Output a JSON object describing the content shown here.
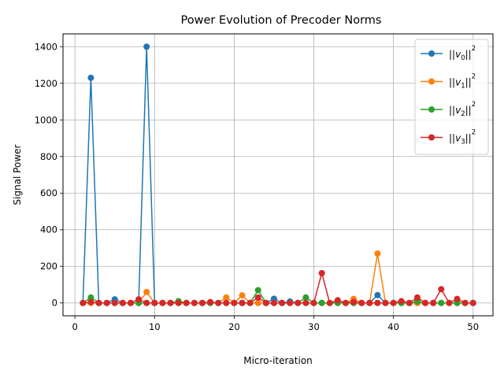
{
  "chart_data": {
    "type": "line",
    "title": "Power Evolution of Precoder Norms",
    "xlabel": "Micro-iteration",
    "ylabel": "Signal Power",
    "xlim": [
      -1.5,
      52.5
    ],
    "ylim": [
      -70,
      1470
    ],
    "xticks": [
      0,
      10,
      20,
      30,
      40,
      50
    ],
    "yticks": [
      0,
      200,
      400,
      600,
      800,
      1000,
      1200,
      1400
    ],
    "grid": true,
    "legend_position": "top-right",
    "x": [
      1,
      2,
      3,
      4,
      5,
      6,
      7,
      8,
      9,
      10,
      11,
      12,
      13,
      14,
      15,
      16,
      17,
      18,
      19,
      20,
      21,
      22,
      23,
      24,
      25,
      26,
      27,
      28,
      29,
      30,
      31,
      32,
      33,
      34,
      35,
      36,
      37,
      38,
      39,
      40,
      41,
      42,
      43,
      44,
      45,
      46,
      47,
      48,
      49,
      50
    ],
    "series": [
      {
        "name": "||v0||^2",
        "base": "v",
        "sub": "0",
        "sup": "2",
        "color": "#1f77b4",
        "values": [
          0,
          1230,
          0,
          0,
          20,
          0,
          0,
          0,
          1400,
          0,
          0,
          0,
          0,
          0,
          0,
          0,
          0,
          0,
          0,
          0,
          0,
          0,
          0,
          0,
          23,
          0,
          8,
          0,
          0,
          0,
          0,
          0,
          0,
          0,
          0,
          0,
          0,
          43,
          0,
          0,
          0,
          0,
          0,
          0,
          0,
          0,
          0,
          0,
          0,
          0
        ]
      },
      {
        "name": "||v1||^2",
        "base": "v",
        "sub": "1",
        "sup": "2",
        "color": "#ff7f0e",
        "values": [
          0,
          0,
          0,
          0,
          0,
          0,
          0,
          0,
          60,
          0,
          0,
          0,
          0,
          0,
          0,
          0,
          0,
          0,
          30,
          0,
          42,
          0,
          0,
          0,
          0,
          0,
          0,
          0,
          0,
          0,
          0,
          0,
          0,
          0,
          22,
          0,
          0,
          270,
          0,
          0,
          0,
          0,
          0,
          0,
          0,
          0,
          0,
          0,
          0,
          0
        ]
      },
      {
        "name": "||v2||^2",
        "base": "v",
        "sub": "2",
        "sup": "2",
        "color": "#2ca02c",
        "values": [
          0,
          30,
          0,
          0,
          0,
          0,
          0,
          0,
          0,
          0,
          0,
          0,
          10,
          0,
          0,
          0,
          0,
          0,
          0,
          0,
          0,
          0,
          70,
          0,
          0,
          0,
          0,
          0,
          30,
          0,
          0,
          0,
          0,
          0,
          0,
          0,
          0,
          0,
          0,
          0,
          0,
          0,
          8,
          0,
          0,
          0,
          0,
          0,
          0,
          0
        ]
      },
      {
        "name": "||v3||^2",
        "base": "v",
        "sub": "3",
        "sup": "2",
        "color": "#d62728",
        "values": [
          0,
          5,
          0,
          0,
          0,
          0,
          0,
          20,
          0,
          0,
          0,
          0,
          0,
          0,
          0,
          0,
          5,
          0,
          0,
          0,
          0,
          0,
          30,
          0,
          0,
          0,
          0,
          0,
          0,
          0,
          163,
          0,
          15,
          0,
          5,
          0,
          0,
          0,
          0,
          0,
          10,
          0,
          30,
          0,
          0,
          75,
          0,
          22,
          0,
          0
        ]
      }
    ]
  }
}
